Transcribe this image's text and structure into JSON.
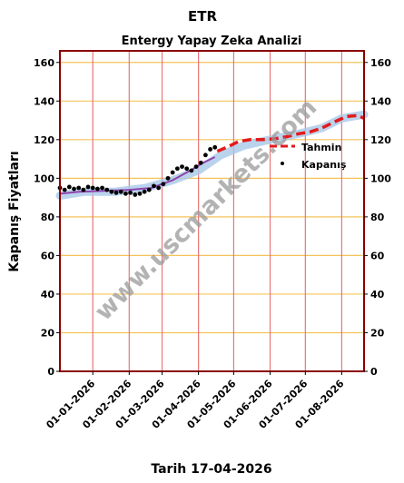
{
  "chart_data": {
    "type": "line",
    "title": "ETR",
    "subtitle": "Entergy Yapay Zeka Analizi",
    "ylabel": "Kapanış Fiyatları",
    "xlabel": "Tarih 17-04-2026",
    "ylim": [
      0,
      166
    ],
    "y_ticks": [
      0,
      20,
      40,
      60,
      80,
      100,
      120,
      140,
      160
    ],
    "x_ticks": [
      "01-01-2026",
      "01-02-2026",
      "01-03-2026",
      "01-04-2026",
      "01-05-2026",
      "01-06-2026",
      "01-07-2026",
      "01-08-2026"
    ],
    "x_range": [
      "2025-12-04",
      "2026-08-20"
    ],
    "grid": {
      "horizontal": true,
      "horizontal_color": "#f5c35a",
      "vertical": true,
      "vertical_color": "#e87777"
    },
    "legend": {
      "placement": "right",
      "entries": [
        {
          "label": "Tahmin",
          "color": "#e41a1c",
          "style": "dashed"
        },
        {
          "label": "Kapanış",
          "color": "#000000",
          "style": "dots"
        }
      ]
    },
    "watermark": "www.uscmarkets.com",
    "series": [
      {
        "name": "Kapanış",
        "color": "#000000",
        "points": [
          [
            "2025-12-04",
            95
          ],
          [
            "2025-12-08",
            94
          ],
          [
            "2025-12-12",
            95.5
          ],
          [
            "2025-12-16",
            94.5
          ],
          [
            "2025-12-20",
            95
          ],
          [
            "2025-12-24",
            94
          ],
          [
            "2025-12-28",
            95.5
          ],
          [
            "2026-01-01",
            95
          ],
          [
            "2026-01-05",
            94.5
          ],
          [
            "2026-01-09",
            95
          ],
          [
            "2026-01-13",
            94
          ],
          [
            "2026-01-17",
            93
          ],
          [
            "2026-01-21",
            92.5
          ],
          [
            "2026-01-25",
            93
          ],
          [
            "2026-01-29",
            92
          ],
          [
            "2026-02-02",
            92.5
          ],
          [
            "2026-02-06",
            91.5
          ],
          [
            "2026-02-10",
            92
          ],
          [
            "2026-02-14",
            93
          ],
          [
            "2026-02-18",
            94
          ],
          [
            "2026-02-22",
            96
          ],
          [
            "2026-02-26",
            95
          ],
          [
            "2026-03-02",
            97
          ],
          [
            "2026-03-06",
            100
          ],
          [
            "2026-03-10",
            103
          ],
          [
            "2026-03-14",
            105
          ],
          [
            "2026-03-18",
            106
          ],
          [
            "2026-03-22",
            105
          ],
          [
            "2026-03-26",
            104
          ],
          [
            "2026-03-30",
            106
          ],
          [
            "2026-04-03",
            108
          ],
          [
            "2026-04-07",
            112
          ],
          [
            "2026-04-11",
            115
          ],
          [
            "2026-04-15",
            116
          ]
        ]
      },
      {
        "name": "Tahmin",
        "color": "#e41a1c",
        "points": [
          [
            "2026-04-17",
            114
          ],
          [
            "2026-04-25",
            116
          ],
          [
            "2026-05-05",
            119
          ],
          [
            "2026-05-15",
            120
          ],
          [
            "2026-05-25",
            120
          ],
          [
            "2026-06-05",
            120.5
          ],
          [
            "2026-06-15",
            121.5
          ],
          [
            "2026-06-25",
            123
          ],
          [
            "2026-07-05",
            124
          ],
          [
            "2026-07-15",
            126
          ],
          [
            "2026-07-25",
            129
          ],
          [
            "2026-08-05",
            132
          ],
          [
            "2026-08-15",
            132.5
          ],
          [
            "2026-08-20",
            131
          ]
        ]
      },
      {
        "name": "",
        "color": "#8e44ad",
        "points": [
          [
            "2025-12-04",
            92
          ],
          [
            "2025-12-20",
            93
          ],
          [
            "2026-01-10",
            93.5
          ],
          [
            "2026-02-01",
            94
          ],
          [
            "2026-02-20",
            95
          ],
          [
            "2026-03-10",
            99
          ],
          [
            "2026-03-25",
            104
          ],
          [
            "2026-04-05",
            108
          ],
          [
            "2026-04-15",
            111
          ]
        ]
      },
      {
        "name": "",
        "color": "#a9c8e8",
        "points": [
          [
            "2025-12-04",
            91
          ],
          [
            "2025-12-25",
            93
          ],
          [
            "2026-01-20",
            93
          ],
          [
            "2026-02-15",
            95
          ],
          [
            "2026-03-10",
            99
          ],
          [
            "2026-04-01",
            104
          ],
          [
            "2026-04-20",
            112
          ],
          [
            "2026-05-10",
            117
          ],
          [
            "2026-06-01",
            120
          ],
          [
            "2026-06-25",
            123
          ],
          [
            "2026-07-15",
            126
          ],
          [
            "2026-08-01",
            131
          ],
          [
            "2026-08-20",
            133
          ]
        ]
      }
    ]
  }
}
